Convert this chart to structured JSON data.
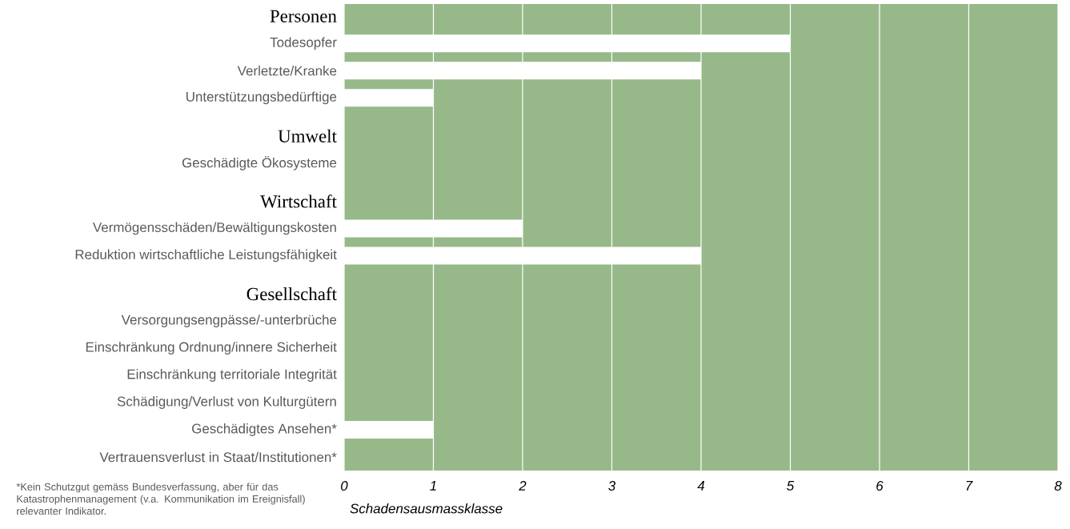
{
  "chart_data": {
    "type": "bar",
    "orientation": "horizontal",
    "categories": [
      "Personen",
      "Todesopfer",
      "Verletzte/Kranke",
      "Unterstützungsbedürftige",
      "Umwelt",
      "Geschädigte Ökosysteme",
      "Wirtschaft",
      "Vermögensschäden/Bewältigungskosten",
      "Reduktion wirtschaftliche Leistungsfähigkeit",
      "Gesellschaft",
      "Versorgungsengpässe/-unterbrüche",
      "Einschränkung Ordnung/innere Sicherheit",
      "Einschränkung territoriale Integrität",
      "Schädigung/Verlust von Kulturgütern",
      "Geschädigtes Ansehen*",
      "Vertrauensverlust in Staat/Institutionen*"
    ],
    "values": [
      null,
      5,
      4,
      1,
      null,
      0,
      null,
      2,
      4,
      null,
      0,
      0,
      0,
      0,
      1,
      0
    ],
    "color": "#ffffff",
    "xlim": [
      0,
      8
    ],
    "xticks": [
      0,
      1,
      2,
      3,
      4,
      5,
      6,
      7,
      8
    ],
    "grid": "x",
    "xlabel": "Schadensausmassklasse",
    "annotations": [
      "*Kein Schutzgut gemäss Bundesverfassung, aber für das Katastrophenmanagement (v.a. Kommunikation im Ereignisfall) relevanter Indikator."
    ]
  }
}
